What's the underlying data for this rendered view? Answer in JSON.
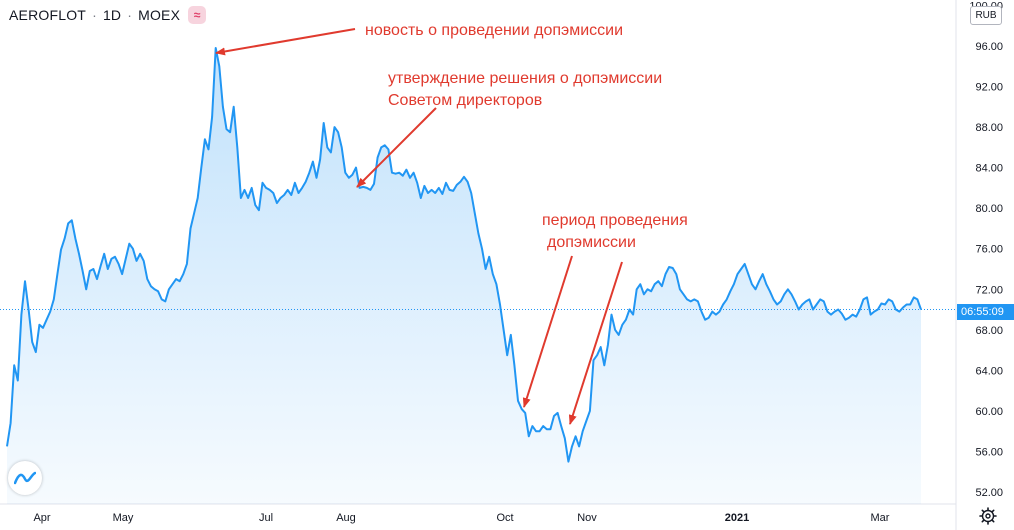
{
  "header": {
    "symbol": "AEROFLOT",
    "interval": "1D",
    "exchange": "MOEX",
    "badge_icon": "pink-wave-badge-icon"
  },
  "currency": "RUB",
  "last_price_label": "06:55:09",
  "annotations": [
    {
      "text": "новость о проведении допэмиссии"
    },
    {
      "text": "утверждение решения о допэмиссии"
    },
    {
      "text": "Советом директоров"
    },
    {
      "text": "период проведения"
    },
    {
      "text": "допэмиссии"
    }
  ],
  "colors": {
    "line": "#2196f3",
    "annotation": "#e03a2e",
    "last_price": "#2196f3"
  },
  "chart_data": {
    "type": "area",
    "title": "",
    "xlabel": "",
    "ylabel": "",
    "ylim": [
      52,
      100
    ],
    "grid": false,
    "x_ticks": [
      "Apr",
      "May",
      "Jul",
      "Aug",
      "Oct",
      "Nov",
      "2021",
      "Mar"
    ],
    "y_ticks": [
      "100.00",
      "96.00",
      "92.00",
      "88.00",
      "84.00",
      "80.00",
      "76.00",
      "72.00",
      "68.00",
      "64.00",
      "60.00",
      "56.00",
      "52.00"
    ],
    "last_value": 70.0,
    "series": [
      {
        "values": [
          56.5,
          58.8,
          64.5,
          63.0,
          69.5,
          72.8,
          70.0,
          66.8,
          65.8,
          68.5,
          68.2,
          69.0,
          69.8,
          71.0,
          73.5,
          75.9,
          77.0,
          78.5,
          78.8,
          77.0,
          75.5,
          73.8,
          72.0,
          73.8,
          74.0,
          73.0,
          74.3,
          75.5,
          74.0,
          75.0,
          75.2,
          74.5,
          73.5,
          75.0,
          76.5,
          76.0,
          74.8,
          75.5,
          74.8,
          73.0,
          72.3,
          72.0,
          71.8,
          71.0,
          70.8,
          72.0,
          72.5,
          73.0,
          72.8,
          73.5,
          74.5,
          78.0,
          79.5,
          81.0,
          84.0,
          86.8,
          85.8,
          89.0,
          95.8,
          94.0,
          90.0,
          87.8,
          87.5,
          90.0,
          86.0,
          81.0,
          81.8,
          81.0,
          82.0,
          80.3,
          79.8,
          82.5,
          82.0,
          81.8,
          81.5,
          80.5,
          81.0,
          81.3,
          81.8,
          81.3,
          82.5,
          81.5,
          82.0,
          82.6,
          83.5,
          84.6,
          83.0,
          84.8,
          88.4,
          86.0,
          85.5,
          88.0,
          87.5,
          86.0,
          83.5,
          83.0,
          83.3,
          84.0,
          82.0,
          82.1,
          82.0,
          81.8,
          82.4,
          85.0,
          86.0,
          86.2,
          85.8,
          83.5,
          83.4,
          83.5,
          83.2,
          83.8,
          83.0,
          83.5,
          82.5,
          81.0,
          82.2,
          81.5,
          81.8,
          81.5,
          82.0,
          81.4,
          82.5,
          81.8,
          81.7,
          82.3,
          82.6,
          83.1,
          82.6,
          81.5,
          79.5,
          77.5,
          76.0,
          74.0,
          75.2,
          73.5,
          72.5,
          70.5,
          68.0,
          65.5,
          67.5,
          64.5,
          61.0,
          60.2,
          59.8,
          57.5,
          58.5,
          58.0,
          58.0,
          58.5,
          58.2,
          58.2,
          59.5,
          59.8,
          58.5,
          57.3,
          55.0,
          56.5,
          57.5,
          56.5,
          58.0,
          59.0,
          60.0,
          65.0,
          65.5,
          66.3,
          64.5,
          66.5,
          69.5,
          68.0,
          67.5,
          68.5,
          69.0,
          70.0,
          69.5,
          72.0,
          72.5,
          71.5,
          72.0,
          71.8,
          72.5,
          72.8,
          72.3,
          73.5,
          74.2,
          74.1,
          73.5,
          72.0,
          71.5,
          71.0,
          70.8,
          71.0,
          70.8,
          69.8,
          69.0,
          69.2,
          69.8,
          69.5,
          69.8,
          70.5,
          71.0,
          71.8,
          72.5,
          73.5,
          74.0,
          74.5,
          73.5,
          72.5,
          72.0,
          72.8,
          73.5,
          72.5,
          71.8,
          71.0,
          70.5,
          70.8,
          71.5,
          72.0,
          71.5,
          70.8,
          70.0,
          70.5,
          70.8,
          71.0,
          70.0,
          70.5,
          71.0,
          70.8,
          69.8,
          69.5,
          69.8,
          70.0,
          69.6,
          69.0,
          69.2,
          69.5,
          69.3,
          70.0,
          71.0,
          71.2,
          69.5,
          69.8,
          70.0,
          70.6,
          70.5,
          71.0,
          70.8,
          70.0,
          69.8,
          70.2,
          70.5,
          70.5,
          71.2,
          71.0,
          70.0
        ]
      }
    ]
  }
}
